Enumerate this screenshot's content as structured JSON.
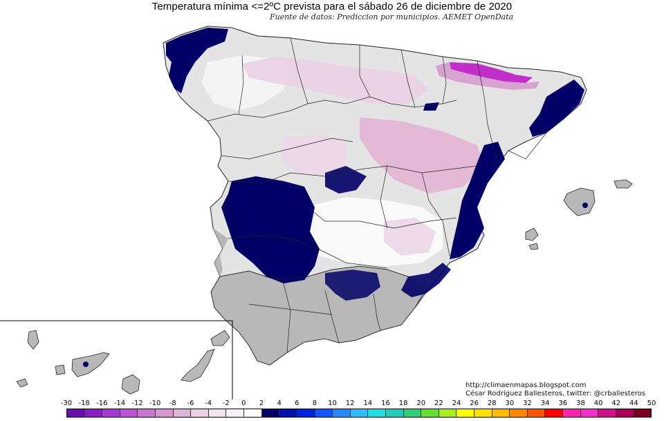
{
  "title": "Temperatura mínima <=2ºC prevista para el sábado 26 de diciembre de 2020",
  "subtitle": "Fuente de datos: Prediccion por municipios. AEMET OpenData",
  "credits": {
    "blog": "http://climaenmapas.blogspot.com",
    "author": "César Rodríguez Ballesteros, twitter: @crballesteros"
  },
  "legend": {
    "labels": [
      "-30",
      "-18",
      "-16",
      "-14",
      "-12",
      "-10",
      "-8",
      "-6",
      "-4",
      "-2",
      "0",
      "2",
      "4",
      "6",
      "8",
      "10",
      "12",
      "14",
      "16",
      "18",
      "20",
      "22",
      "24",
      "26",
      "28",
      "30",
      "32",
      "34",
      "36",
      "38",
      "40",
      "42",
      "44",
      "50"
    ],
    "colors": [
      "#6a0dad",
      "#8a1fc2",
      "#a23ad0",
      "#bb55d6",
      "#c978d0",
      "#d598cc",
      "#dfb5d6",
      "#e9d0e4",
      "#f1e4ee",
      "#f7f2f6",
      "#ffffff",
      "#000066",
      "#0011aa",
      "#0022dd",
      "#1155ff",
      "#2a88ff",
      "#33bbff",
      "#22dddd",
      "#22ccbb",
      "#33cc77",
      "#66dd33",
      "#aaee22",
      "#ffff00",
      "#ffdd00",
      "#ffbb00",
      "#ff8800",
      "#ff5500",
      "#ff0000",
      "#ff22aa",
      "#ee33cc",
      "#cc1188",
      "#aa0055",
      "#770022"
    ]
  },
  "map_colors": {
    "cold_navy": "#000066",
    "pink_frost": "#e2b4d4",
    "magenta_peak": "#c22ec9",
    "light_grey": "#e4e4e4",
    "mid_grey": "#b8b8b8",
    "white_zone": "#fafafa"
  }
}
